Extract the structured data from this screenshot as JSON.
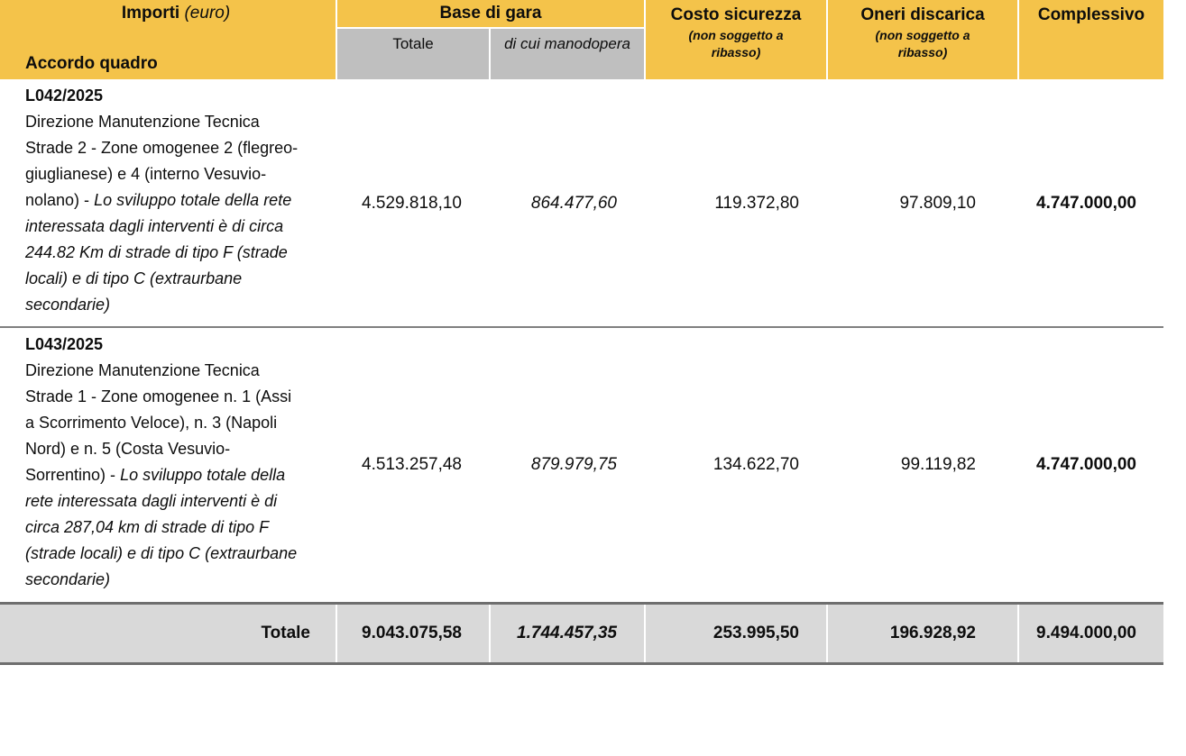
{
  "colors": {
    "header_yellow": "#F4C34A",
    "subheader_gray": "#BFBFBF",
    "totals_gray": "#D9D9D9",
    "row_separator_gray": "#808080",
    "totals_border_gray": "#6E6E6E",
    "text": "#0D0D0D"
  },
  "table": {
    "header": {
      "importi": "Importi",
      "importi_unit": "(euro)",
      "accordo_quadro": "Accordo quadro",
      "base_di_gara": "Base di gara",
      "totale": "Totale",
      "di_cui_manodopera": "di cui manodopera",
      "costo_sicurezza": "Costo sicurezza",
      "oneri_discarica": "Oneri discarica",
      "non_soggetto_a_ribasso": "(non soggetto a ribasso)",
      "complessivo": "Complessivo"
    },
    "rows": [
      {
        "code": "L042/2025",
        "description": "Direzione Manutenzione Tecnica Strade 2 - Zone omogenee 2 (flegreo-giuglianese) e 4 (interno Vesuvio-nolano) -",
        "description_italic": "Lo sviluppo totale della rete interessata dagli interventi è di circa 244.82 Km di strade di tipo F (strade locali) e di tipo C (extraurbane secondarie)",
        "base_totale": "4.529.818,10",
        "manodopera": "864.477,60",
        "costo_sicurezza": "119.372,80",
        "oneri_discarica": "97.809,10",
        "complessivo": "4.747.000,00"
      },
      {
        "code": "L043/2025",
        "description": "Direzione Manutenzione Tecnica Strade 1 - Zone omogenee n. 1 (Assi a Scorrimento Veloce), n. 3 (Napoli Nord) e n. 5 (Costa Vesuvio-Sorrentino) -",
        "description_italic": "Lo sviluppo totale della rete interessata dagli interventi è di circa 287,04 km di strade di tipo F (strade locali) e di tipo C (extraurbane secondarie)",
        "base_totale": "4.513.257,48",
        "manodopera": "879.979,75",
        "costo_sicurezza": "134.622,70",
        "oneri_discarica": "99.119,82",
        "complessivo": "4.747.000,00"
      }
    ],
    "totals": {
      "label": "Totale",
      "base_totale": "9.043.075,58",
      "manodopera": "1.744.457,35",
      "costo_sicurezza": "253.995,50",
      "oneri_discarica": "196.928,92",
      "complessivo": "9.494.000,00"
    }
  }
}
